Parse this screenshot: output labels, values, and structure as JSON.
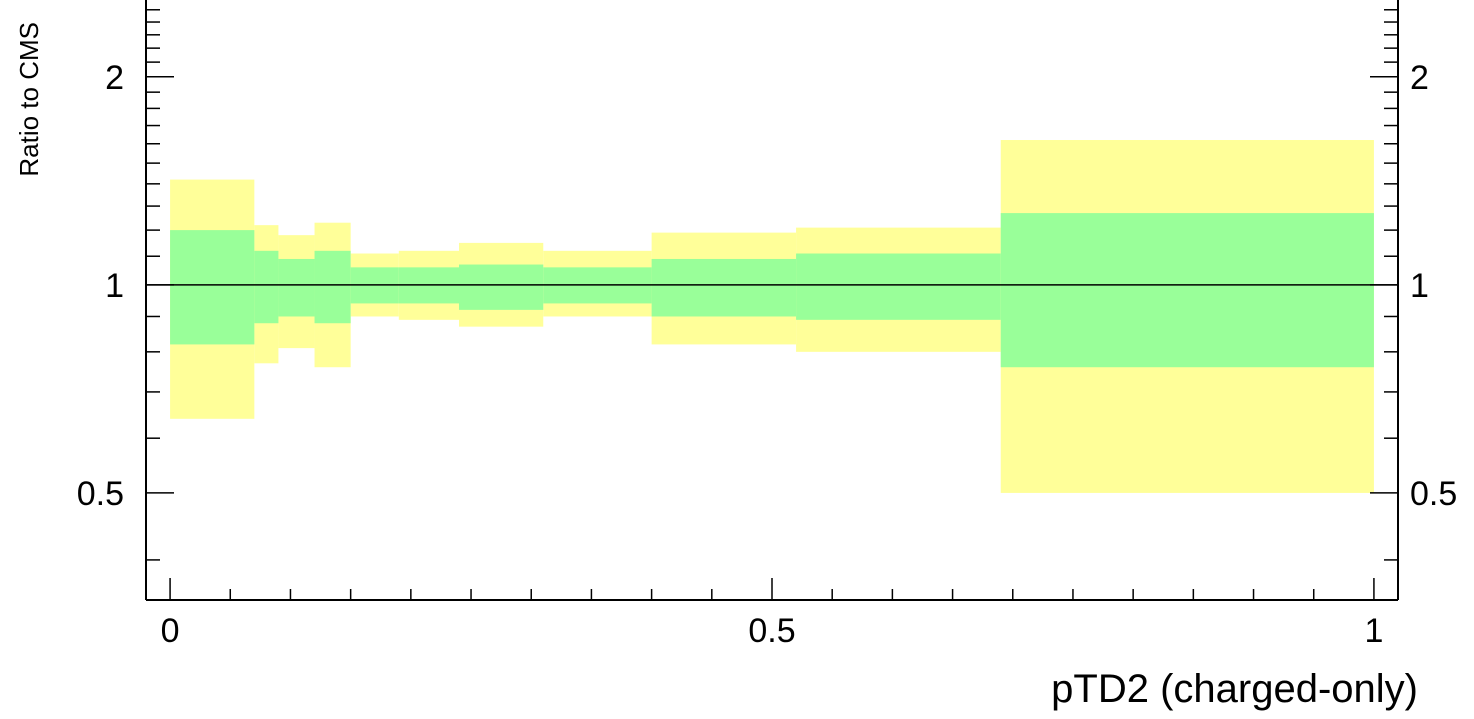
{
  "chart_data": {
    "type": "area",
    "xlabel": "pTD2 (charged-only)",
    "ylabel": "Ratio to CMS",
    "xlim": [
      -0.02,
      1.02
    ],
    "ylim_log": [
      0.35,
      2.6
    ],
    "log_y": true,
    "x_ticks": [
      {
        "value": 0,
        "label": "0"
      },
      {
        "value": 0.5,
        "label": "0.5"
      },
      {
        "value": 1,
        "label": "1"
      }
    ],
    "y_ticks": [
      {
        "value": 0.5,
        "label": "0.5"
      },
      {
        "value": 1,
        "label": "1"
      },
      {
        "value": 2,
        "label": "2"
      }
    ],
    "reference_line": 1.0,
    "colors": {
      "outer_band": "#ffff99",
      "inner_band": "#99ff99",
      "axis": "#000000"
    },
    "bins": [
      {
        "x0": 0.0,
        "x1": 0.07,
        "inner": [
          0.82,
          1.2
        ],
        "outer": [
          0.64,
          1.42
        ]
      },
      {
        "x0": 0.07,
        "x1": 0.09,
        "inner": [
          0.88,
          1.12
        ],
        "outer": [
          0.77,
          1.22
        ]
      },
      {
        "x0": 0.09,
        "x1": 0.12,
        "inner": [
          0.9,
          1.09
        ],
        "outer": [
          0.81,
          1.18
        ]
      },
      {
        "x0": 0.12,
        "x1": 0.15,
        "inner": [
          0.88,
          1.12
        ],
        "outer": [
          0.76,
          1.23
        ]
      },
      {
        "x0": 0.15,
        "x1": 0.19,
        "inner": [
          0.94,
          1.06
        ],
        "outer": [
          0.9,
          1.11
        ]
      },
      {
        "x0": 0.19,
        "x1": 0.24,
        "inner": [
          0.94,
          1.06
        ],
        "outer": [
          0.89,
          1.12
        ]
      },
      {
        "x0": 0.24,
        "x1": 0.31,
        "inner": [
          0.92,
          1.07
        ],
        "outer": [
          0.87,
          1.15
        ]
      },
      {
        "x0": 0.31,
        "x1": 0.4,
        "inner": [
          0.94,
          1.06
        ],
        "outer": [
          0.9,
          1.12
        ]
      },
      {
        "x0": 0.4,
        "x1": 0.52,
        "inner": [
          0.9,
          1.09
        ],
        "outer": [
          0.82,
          1.19
        ]
      },
      {
        "x0": 0.52,
        "x1": 0.69,
        "inner": [
          0.89,
          1.11
        ],
        "outer": [
          0.8,
          1.21
        ]
      },
      {
        "x0": 0.69,
        "x1": 1.0,
        "inner": [
          0.76,
          1.27
        ],
        "outer": [
          0.5,
          1.62
        ]
      }
    ]
  }
}
